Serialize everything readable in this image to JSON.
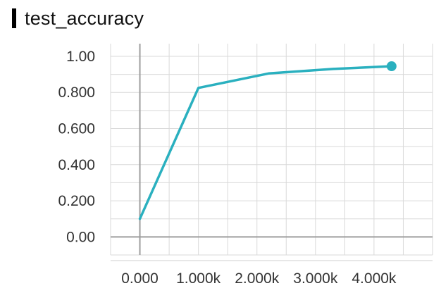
{
  "chart_data": {
    "type": "line",
    "title": "test_accuracy",
    "xlabel": "",
    "ylabel": "",
    "x_tick_labels": [
      "0.000",
      "1.000k",
      "2.000k",
      "3.000k",
      "4.000k"
    ],
    "x_ticks": [
      0,
      1000,
      2000,
      3000,
      4000
    ],
    "y_tick_labels": [
      "0.00",
      "0.200",
      "0.400",
      "0.600",
      "0.800",
      "1.00"
    ],
    "y_ticks": [
      0,
      0.2,
      0.4,
      0.6,
      0.8,
      1.0
    ],
    "xlim": [
      -500,
      5000
    ],
    "ylim": [
      -0.1,
      1.07
    ],
    "grid": true,
    "series": [
      {
        "x": [
          0,
          1000,
          2200,
          3300,
          4300
        ],
        "y": [
          0.1,
          0.825,
          0.905,
          0.93,
          0.945
        ],
        "color": "#2ab0bf"
      }
    ]
  }
}
